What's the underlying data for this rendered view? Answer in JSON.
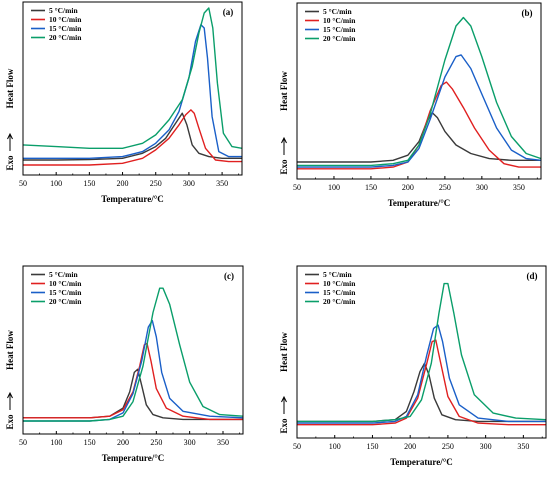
{
  "chart_data": [
    {
      "type": "line",
      "panel": "(a)",
      "xlabel": "Temperature/°C",
      "ylabel": "Heat Flow",
      "exo_label": "Exo",
      "xlim": [
        50,
        380
      ],
      "ylim": [
        0,
        1
      ],
      "xticks": [
        50,
        100,
        150,
        200,
        250,
        300,
        350
      ],
      "legend_position": "top-left",
      "series": [
        {
          "name": "5 °C/min",
          "color": "#3a3a3a",
          "x": [
            50,
            100,
            150,
            200,
            230,
            250,
            265,
            280,
            290,
            297,
            305,
            315,
            330,
            350,
            380
          ],
          "y": [
            0.09,
            0.09,
            0.092,
            0.1,
            0.13,
            0.17,
            0.22,
            0.31,
            0.37,
            0.3,
            0.18,
            0.13,
            0.11,
            0.1,
            0.1
          ]
        },
        {
          "name": "10 °C/min",
          "color": "#e02020",
          "x": [
            50,
            100,
            150,
            200,
            230,
            250,
            270,
            285,
            295,
            303,
            308,
            315,
            325,
            340,
            360,
            380
          ],
          "y": [
            0.06,
            0.06,
            0.06,
            0.07,
            0.1,
            0.15,
            0.22,
            0.3,
            0.36,
            0.39,
            0.37,
            0.28,
            0.16,
            0.09,
            0.08,
            0.08
          ]
        },
        {
          "name": "15 °C/min",
          "color": "#1a5fc8",
          "x": [
            50,
            100,
            150,
            200,
            230,
            250,
            270,
            285,
            300,
            310,
            318,
            323,
            328,
            335,
            345,
            360,
            380
          ],
          "y": [
            0.1,
            0.1,
            0.1,
            0.11,
            0.14,
            0.19,
            0.27,
            0.38,
            0.58,
            0.8,
            0.9,
            0.88,
            0.7,
            0.35,
            0.14,
            0.11,
            0.11
          ]
        },
        {
          "name": "20 °C/min",
          "color": "#0a9e6a",
          "x": [
            50,
            100,
            150,
            200,
            230,
            250,
            270,
            290,
            305,
            315,
            323,
            330,
            336,
            343,
            352,
            365,
            380
          ],
          "y": [
            0.18,
            0.17,
            0.16,
            0.16,
            0.19,
            0.24,
            0.33,
            0.45,
            0.65,
            0.85,
            0.97,
            1.0,
            0.88,
            0.55,
            0.25,
            0.17,
            0.16
          ]
        }
      ]
    },
    {
      "type": "line",
      "panel": "(b)",
      "xlabel": "Temperature/°C",
      "ylabel": "Heat Flow",
      "exo_label": "Exo",
      "xlim": [
        50,
        380
      ],
      "ylim": [
        0,
        1
      ],
      "xticks": [
        50,
        100,
        150,
        200,
        250,
        300,
        350
      ],
      "legend_position": "top-left",
      "series": [
        {
          "name": "5 °C/min",
          "color": "#3a3a3a",
          "x": [
            50,
            100,
            150,
            180,
            200,
            215,
            225,
            233,
            240,
            250,
            265,
            285,
            310,
            340,
            380
          ],
          "y": [
            0.1,
            0.1,
            0.1,
            0.11,
            0.14,
            0.22,
            0.33,
            0.39,
            0.36,
            0.28,
            0.2,
            0.15,
            0.12,
            0.11,
            0.11
          ]
        },
        {
          "name": "10 °C/min",
          "color": "#e02020",
          "x": [
            50,
            100,
            150,
            180,
            200,
            215,
            230,
            245,
            252,
            260,
            275,
            290,
            310,
            330,
            350,
            380
          ],
          "y": [
            0.06,
            0.06,
            0.06,
            0.07,
            0.1,
            0.2,
            0.4,
            0.55,
            0.57,
            0.53,
            0.42,
            0.3,
            0.17,
            0.09,
            0.07,
            0.07
          ]
        },
        {
          "name": "15 °C/min",
          "color": "#1a5fc8",
          "x": [
            50,
            100,
            150,
            180,
            200,
            215,
            230,
            250,
            265,
            272,
            285,
            300,
            320,
            340,
            360,
            380
          ],
          "y": [
            0.07,
            0.07,
            0.07,
            0.08,
            0.1,
            0.18,
            0.35,
            0.6,
            0.72,
            0.73,
            0.65,
            0.5,
            0.3,
            0.17,
            0.12,
            0.11
          ]
        },
        {
          "name": "20 °C/min",
          "color": "#0a9e6a",
          "x": [
            50,
            100,
            150,
            180,
            200,
            215,
            230,
            250,
            265,
            275,
            285,
            300,
            320,
            340,
            360,
            380
          ],
          "y": [
            0.08,
            0.08,
            0.08,
            0.09,
            0.11,
            0.2,
            0.38,
            0.7,
            0.9,
            0.95,
            0.9,
            0.72,
            0.45,
            0.25,
            0.15,
            0.12
          ]
        }
      ]
    },
    {
      "type": "line",
      "panel": "(c)",
      "xlabel": "Temperature/°C",
      "ylabel": "Heat Flow",
      "exo_label": "Exo",
      "xlim": [
        50,
        380
      ],
      "ylim": [
        0,
        1
      ],
      "xticks": [
        50,
        100,
        150,
        200,
        250,
        300,
        350
      ],
      "legend_position": "top-left",
      "series": [
        {
          "name": "5 °C/min",
          "color": "#3a3a3a",
          "x": [
            50,
            100,
            150,
            180,
            200,
            210,
            217,
            222,
            228,
            235,
            245,
            260,
            290,
            330,
            380
          ],
          "y": [
            0.1,
            0.1,
            0.1,
            0.11,
            0.16,
            0.26,
            0.38,
            0.4,
            0.3,
            0.18,
            0.12,
            0.1,
            0.09,
            0.09,
            0.09
          ]
        },
        {
          "name": "10 °C/min",
          "color": "#e02020",
          "x": [
            50,
            100,
            150,
            180,
            200,
            215,
            225,
            232,
            236,
            242,
            250,
            265,
            290,
            330,
            380
          ],
          "y": [
            0.1,
            0.1,
            0.1,
            0.11,
            0.15,
            0.26,
            0.42,
            0.55,
            0.56,
            0.45,
            0.28,
            0.16,
            0.11,
            0.09,
            0.09
          ]
        },
        {
          "name": "15 °C/min",
          "color": "#1a5fc8",
          "x": [
            50,
            100,
            150,
            180,
            200,
            215,
            228,
            238,
            244,
            250,
            258,
            270,
            290,
            330,
            380
          ],
          "y": [
            0.08,
            0.08,
            0.08,
            0.09,
            0.13,
            0.25,
            0.45,
            0.66,
            0.7,
            0.6,
            0.38,
            0.22,
            0.14,
            0.11,
            0.1
          ]
        },
        {
          "name": "20 °C/min",
          "color": "#0a9e6a",
          "x": [
            50,
            100,
            150,
            180,
            200,
            215,
            230,
            245,
            255,
            260,
            270,
            285,
            300,
            320,
            345,
            380
          ],
          "y": [
            0.08,
            0.08,
            0.08,
            0.09,
            0.11,
            0.2,
            0.42,
            0.75,
            0.9,
            0.9,
            0.8,
            0.55,
            0.32,
            0.17,
            0.12,
            0.11
          ]
        }
      ]
    },
    {
      "type": "line",
      "panel": "(d)",
      "xlabel": "Temperature/°C",
      "ylabel": "Heat Flow",
      "exo_label": "Exo",
      "xlim": [
        50,
        380
      ],
      "ylim": [
        0,
        1
      ],
      "xticks": [
        50,
        100,
        150,
        200,
        250,
        300,
        350
      ],
      "legend_position": "top-left",
      "series": [
        {
          "name": "5 °C/min",
          "color": "#3a3a3a",
          "x": [
            50,
            100,
            150,
            180,
            195,
            205,
            213,
            219,
            225,
            232,
            242,
            260,
            290,
            330,
            380
          ],
          "y": [
            0.1,
            0.1,
            0.1,
            0.11,
            0.16,
            0.28,
            0.4,
            0.45,
            0.38,
            0.24,
            0.14,
            0.11,
            0.1,
            0.1,
            0.1
          ]
        },
        {
          "name": "10 °C/min",
          "color": "#e02020",
          "x": [
            50,
            100,
            150,
            180,
            195,
            210,
            222,
            229,
            234,
            240,
            250,
            265,
            290,
            330,
            380
          ],
          "y": [
            0.08,
            0.08,
            0.08,
            0.09,
            0.12,
            0.24,
            0.45,
            0.58,
            0.59,
            0.46,
            0.25,
            0.13,
            0.09,
            0.08,
            0.08
          ]
        },
        {
          "name": "15 °C/min",
          "color": "#1a5fc8",
          "x": [
            50,
            100,
            150,
            180,
            195,
            210,
            222,
            231,
            237,
            243,
            252,
            265,
            290,
            330,
            380
          ],
          "y": [
            0.09,
            0.09,
            0.09,
            0.1,
            0.13,
            0.26,
            0.5,
            0.66,
            0.68,
            0.58,
            0.36,
            0.2,
            0.12,
            0.1,
            0.1
          ]
        },
        {
          "name": "20 °C/min",
          "color": "#0a9e6a",
          "x": [
            50,
            100,
            150,
            180,
            200,
            215,
            228,
            238,
            245,
            250,
            258,
            268,
            285,
            310,
            340,
            380
          ],
          "y": [
            0.1,
            0.1,
            0.1,
            0.11,
            0.13,
            0.23,
            0.45,
            0.75,
            0.93,
            0.93,
            0.75,
            0.5,
            0.26,
            0.15,
            0.12,
            0.11
          ]
        }
      ]
    }
  ]
}
